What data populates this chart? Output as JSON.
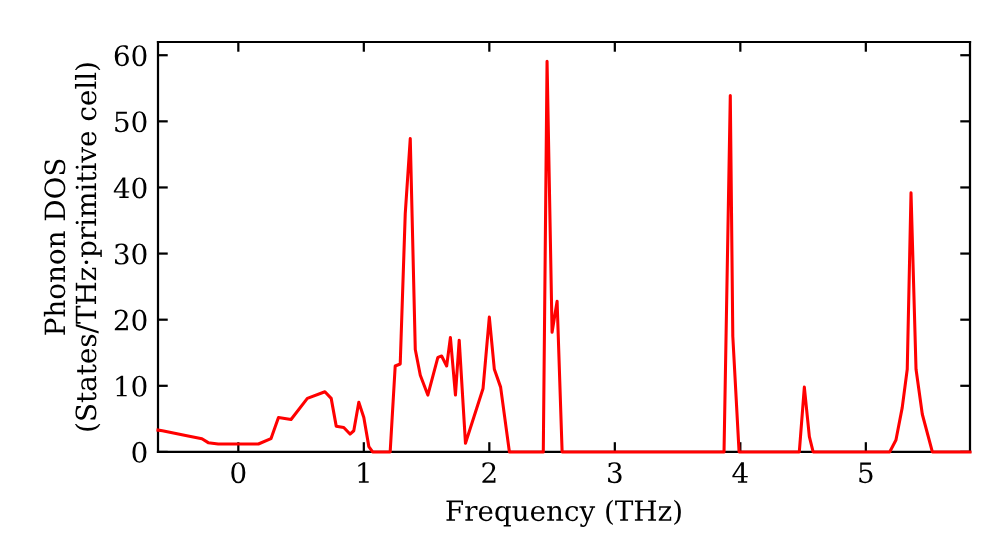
{
  "chart_data": {
    "type": "line",
    "xlabel": "Frequency (THz)",
    "ylabel": "Phonon DOS\n(States/THz·primitive cell)",
    "x": [
      -0.64,
      -0.605,
      -0.42,
      -0.29,
      -0.24,
      -0.16,
      0.16,
      0.26,
      0.32,
      0.42,
      0.55,
      0.69,
      0.74,
      0.78,
      0.84,
      0.89,
      0.92,
      0.96,
      1.0,
      1.04,
      1.07,
      1.21,
      1.25,
      1.29,
      1.33,
      1.37,
      1.41,
      1.45,
      1.51,
      1.59,
      1.62,
      1.66,
      1.69,
      1.73,
      1.76,
      1.81,
      1.95,
      2.0,
      2.04,
      2.09,
      2.16,
      2.43,
      2.46,
      2.5,
      2.54,
      2.58,
      3.87,
      3.92,
      3.94,
      3.99,
      4.47,
      4.51,
      4.55,
      4.58,
      5.19,
      5.24,
      5.29,
      5.33,
      5.36,
      5.4,
      5.45,
      5.53,
      5.83
    ],
    "series": [
      {
        "color": "#ff0000",
        "values": [
          3.3,
          3.2,
          2.5,
          2.0,
          1.4,
          1.2,
          1.2,
          2.0,
          5.2,
          4.9,
          8.1,
          9.1,
          8.1,
          3.9,
          3.7,
          2.7,
          3.2,
          7.5,
          5.2,
          0.8,
          0,
          0,
          13,
          13.3,
          36,
          47.4,
          15.5,
          11.6,
          8.6,
          14.3,
          14.5,
          13,
          17.3,
          8.6,
          16.9,
          1.3,
          9.6,
          20.4,
          12.5,
          9.8,
          0,
          0,
          59.1,
          18.1,
          22.8,
          0,
          0,
          53.9,
          17.5,
          0,
          0,
          9.8,
          2.3,
          0,
          0,
          1.8,
          6.7,
          12.5,
          39.2,
          12.5,
          5.7,
          0,
          0
        ]
      }
    ],
    "xlim": [
      -0.64,
      5.83
    ],
    "ylim": [
      0,
      62
    ],
    "xticks": [
      0,
      1,
      2,
      3,
      4,
      5
    ],
    "yticks": [
      0,
      10,
      20,
      30,
      40,
      50,
      60
    ],
    "grid": false,
    "legend": false,
    "marker": "none",
    "line_style": "solid"
  }
}
